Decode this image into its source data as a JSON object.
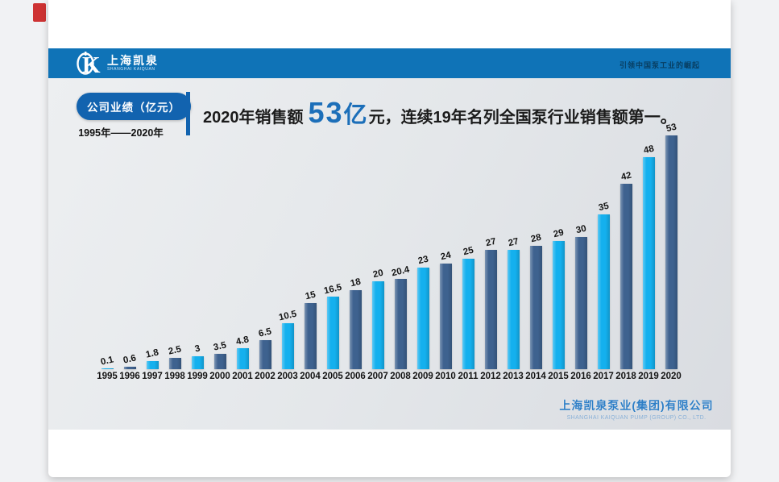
{
  "header": {
    "logo_cn": "上海凯泉",
    "logo_en": "SHANGHAI KAIQUAN",
    "slogan": "引领中国泵工业的崛起"
  },
  "badge": {
    "label": "公司业绩（亿元）",
    "range": "1995年——2020年"
  },
  "headline": {
    "prefix": "2020年销售额",
    "big": "53",
    "unit": "亿",
    "mid": "元，",
    "suffix": "连续19年名列全国泵行业销售额第一。"
  },
  "footer": {
    "company_cn": "上海凯泉泵业(集团)有限公司",
    "company_en": "SHANGHAI KAIQUAN PUMP (GROUP) CO., LTD."
  },
  "colors": {
    "band_blue": "#0f73b7",
    "badge_blue": "#1263af",
    "headline_blue": "#1c6fb9",
    "accent_red": "#ce3333",
    "bar_cyan": "#14b0ee",
    "bar_slate": "#3e628f"
  },
  "chart_data": {
    "type": "bar",
    "title": "公司业绩（亿元）",
    "subtitle": "1995年——2020年",
    "categories": [
      "1995",
      "1996",
      "1997",
      "1998",
      "1999",
      "2000",
      "2001",
      "2002",
      "2003",
      "2004",
      "2005",
      "2006",
      "2007",
      "2008",
      "2009",
      "2010",
      "2011",
      "2012",
      "2013",
      "2014",
      "2015",
      "2016",
      "2017",
      "2018",
      "2019",
      "2020"
    ],
    "values": [
      0.1,
      0.6,
      1.8,
      2.5,
      3,
      3.5,
      4.8,
      6.5,
      10.5,
      15,
      16.5,
      18,
      20,
      20.4,
      23,
      24,
      25,
      27,
      27,
      28,
      29,
      30,
      35,
      42,
      48,
      53
    ],
    "xlabel": "",
    "ylabel": "",
    "ylim": [
      0,
      55
    ],
    "grid": false,
    "legend": "none",
    "bar_colors": {
      "odd_years": "#14b0ee",
      "even_years": "#3e628f"
    },
    "value_labels": "above bars, bold, rotated"
  }
}
